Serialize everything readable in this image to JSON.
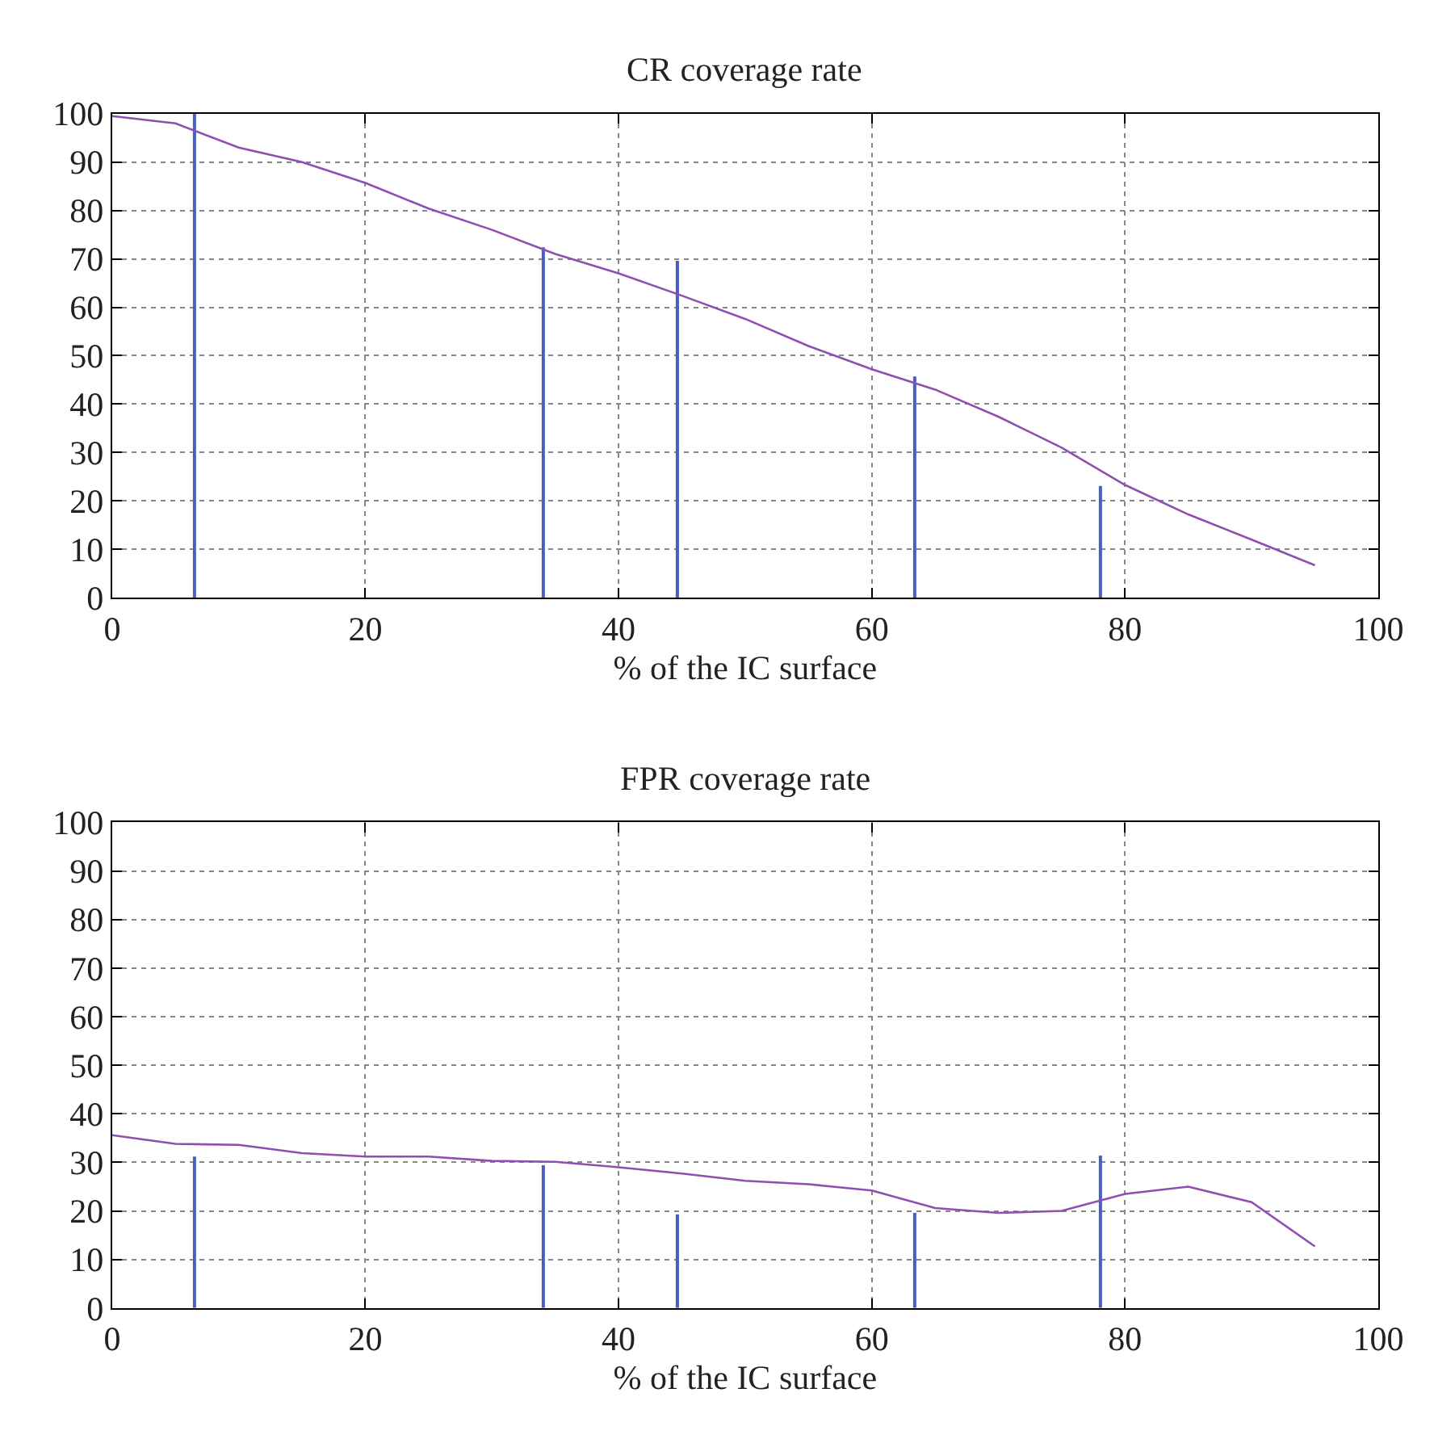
{
  "chart_data": [
    {
      "type": "line",
      "title": "CR coverage rate",
      "xlabel": "% of the IC surface",
      "xlim": [
        0,
        100
      ],
      "ylim": [
        0,
        100
      ],
      "xticks": [
        0,
        20,
        40,
        60,
        80,
        100
      ],
      "yticks": [
        0,
        10,
        20,
        30,
        40,
        50,
        60,
        70,
        80,
        90,
        100
      ],
      "grid": true,
      "series": [
        {
          "color": "#8e4fb0",
          "x": [
            0,
            5,
            10,
            15,
            20,
            25,
            30,
            35,
            40,
            45,
            50,
            55,
            60,
            65,
            70,
            75,
            80,
            85,
            90,
            95
          ],
          "values": [
            99.5,
            98,
            93,
            90,
            85.7,
            80.4,
            76,
            71,
            67,
            62.4,
            57.6,
            52,
            47.2,
            43,
            37.4,
            31,
            23.3,
            17.2,
            12,
            6.7
          ]
        },
        {
          "type": "bar",
          "color": "#4a5fc0",
          "x": [
            6.5,
            34.1,
            44.7,
            63.4,
            78.1
          ],
          "values": [
            100,
            72.4,
            69.6,
            45.7,
            23.1
          ]
        }
      ]
    },
    {
      "type": "line",
      "title": "FPR coverage rate",
      "xlabel": "% of the IC surface",
      "xlim": [
        0,
        100
      ],
      "ylim": [
        0,
        100
      ],
      "xticks": [
        0,
        20,
        40,
        60,
        80,
        100
      ],
      "yticks": [
        0,
        10,
        20,
        30,
        40,
        50,
        60,
        70,
        80,
        90,
        100
      ],
      "grid": true,
      "series": [
        {
          "color": "#8e4fb0",
          "x": [
            0,
            5,
            10,
            15,
            20,
            25,
            30,
            35,
            40,
            45,
            50,
            55,
            60,
            65,
            70,
            75,
            80,
            85,
            90,
            95
          ],
          "values": [
            35.6,
            33.8,
            33.6,
            31.9,
            31.2,
            31.2,
            30.3,
            30.1,
            29,
            27.7,
            26.2,
            25.5,
            24.2,
            20.6,
            19.6,
            20,
            23.5,
            25,
            21.8,
            12.7
          ]
        },
        {
          "type": "bar",
          "color": "#4a5fc0",
          "x": [
            6.5,
            34.1,
            44.7,
            63.4,
            78.1
          ],
          "values": [
            31.2,
            29.4,
            19.3,
            19.6,
            31.4
          ]
        }
      ]
    }
  ]
}
